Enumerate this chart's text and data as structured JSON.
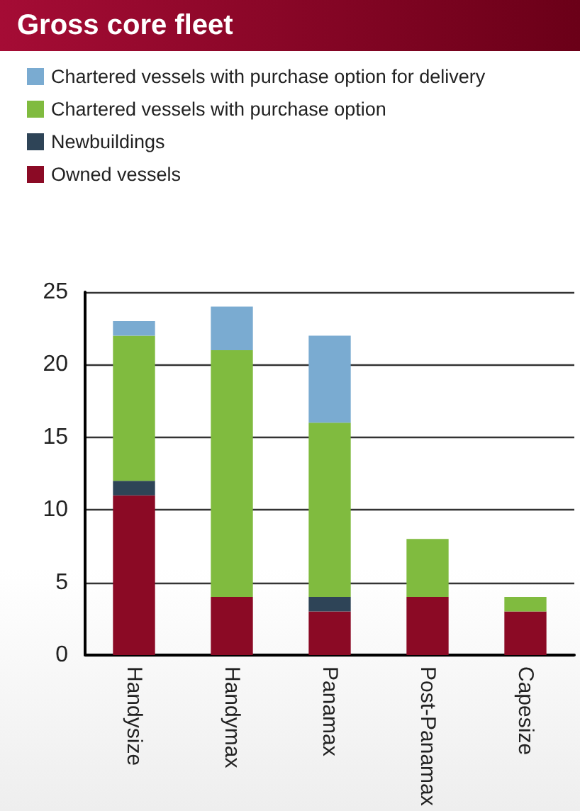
{
  "chart_data": {
    "type": "bar",
    "title": "Gross core fleet",
    "stacked": true,
    "legend": "top left",
    "grid": "y",
    "categories": [
      "Handysize",
      "Handymax",
      "Panamax",
      "Post-Panamax",
      "Capesize"
    ],
    "series": [
      {
        "name": "Owned vessels",
        "color": "#8b0a25",
        "values": [
          11,
          4,
          3,
          4,
          3
        ]
      },
      {
        "name": "Newbuildings",
        "color": "#2e4457",
        "values": [
          1,
          0,
          1,
          0,
          0
        ]
      },
      {
        "name": "Chartered vessels with purchase option",
        "color": "#80bb3f",
        "values": [
          10,
          17,
          12,
          4,
          1
        ]
      },
      {
        "name": "Chartered vessels with purchase option for delivery",
        "color": "#7aabd1",
        "values": [
          1,
          3,
          6,
          0,
          0
        ]
      }
    ],
    "ylim": [
      0,
      25
    ],
    "yticks": [
      0,
      5,
      10,
      15,
      20,
      25
    ]
  }
}
